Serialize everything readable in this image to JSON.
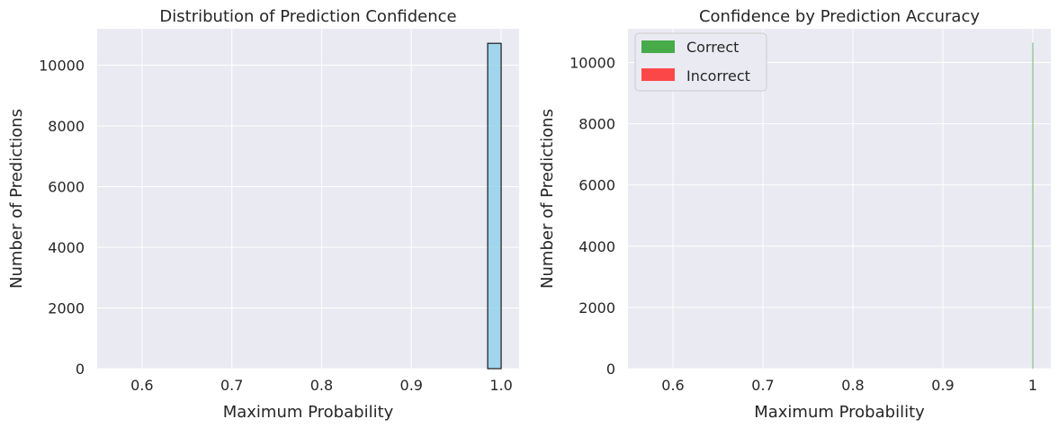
{
  "chart_data": [
    {
      "type": "bar",
      "title": "Distribution of Prediction Confidence",
      "xlabel": "Maximum Probability",
      "ylabel": "Number of Predictions",
      "xlim": [
        0.55,
        1.02
      ],
      "ylim": [
        0,
        11200
      ],
      "xticks": [
        0.6,
        0.7,
        0.8,
        0.9,
        1.0
      ],
      "xtick_labels": [
        "0.6",
        "0.7",
        "0.8",
        "0.9",
        "1.0"
      ],
      "yticks": [
        0,
        2000,
        4000,
        6000,
        8000,
        10000
      ],
      "ytick_labels": [
        "0",
        "2000",
        "4000",
        "6000",
        "8000",
        "10000"
      ],
      "grid": true,
      "legend": null,
      "bins": [
        {
          "x0": 0.985,
          "x1": 1.0,
          "value": 10720
        }
      ],
      "colors": {
        "bar_fill": "#87ceeb",
        "bar_edge": "#1a1a1a",
        "plot_bg": "#eaeaf2",
        "grid": "#ffffff"
      }
    },
    {
      "type": "bar",
      "title": "Confidence by Prediction Accuracy",
      "xlabel": "Maximum Probability",
      "ylabel": "Number of Predictions",
      "xlim": [
        0.55,
        1.02
      ],
      "ylim": [
        0,
        11100
      ],
      "xticks": [
        0.6,
        0.7,
        0.8,
        0.9,
        1.0
      ],
      "xtick_labels": [
        "0.6",
        "0.7",
        "0.8",
        "0.9",
        "1"
      ],
      "yticks": [
        0,
        2000,
        4000,
        6000,
        8000,
        10000
      ],
      "ytick_labels": [
        "0",
        "2000",
        "4000",
        "6000",
        "8000",
        "10000"
      ],
      "grid": true,
      "legend": "top-left",
      "series": [
        {
          "name": "Correct",
          "color": "#2ca02c",
          "bins": [
            {
              "x0": 0.9995,
              "x1": 1.0,
              "value": 10650
            }
          ]
        },
        {
          "name": "Incorrect",
          "color": "#ff2a2a",
          "bins": []
        }
      ],
      "colors": {
        "plot_bg": "#eaeaf2",
        "grid": "#ffffff"
      }
    }
  ]
}
